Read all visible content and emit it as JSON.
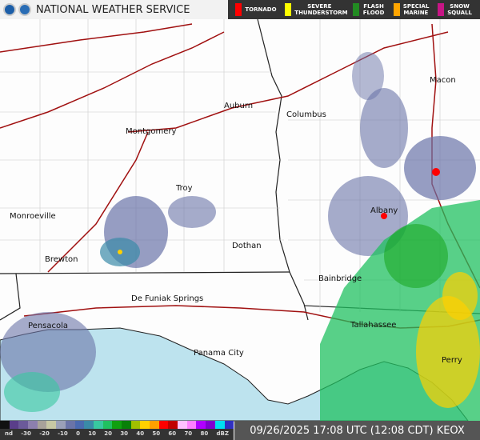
{
  "header": {
    "title": "NATIONAL WEATHER SERVICE"
  },
  "warnings": [
    {
      "label": "TORNADO",
      "color": "#ff0000"
    },
    {
      "label": "SEVERE THUNDERSTORM",
      "color": "#ffff00"
    },
    {
      "label": "FLASH FLOOD",
      "color": "#228b22"
    },
    {
      "label": "SPECIAL MARINE",
      "color": "#ffa500"
    },
    {
      "label": "SNOW SQUALL",
      "color": "#c71585"
    }
  ],
  "cities": [
    "Macon",
    "Auburn",
    "Columbus",
    "Montgomery",
    "Troy",
    "Albany",
    "Monroeville",
    "Dothan",
    "Brewton",
    "Bainbridge",
    "De Funiak Springs",
    "Pensacola",
    "Tallahassee",
    "Panama City",
    "Perry"
  ],
  "legend": {
    "ticks": [
      "nd",
      "-30",
      "-20",
      "-10",
      "0",
      "10",
      "20",
      "30",
      "40",
      "50",
      "60",
      "70",
      "80",
      "dBZ"
    ],
    "colors": [
      "#111",
      "#5a3e8a",
      "#6b5a9a",
      "#8c7fae",
      "#a8a29a",
      "#c7c8a4",
      "#9aa0b8",
      "#6a74a8",
      "#4a6ab0",
      "#3a8aa8",
      "#38c8a0",
      "#20c060",
      "#10a010",
      "#088008",
      "#a0c000",
      "#ffd000",
      "#ffa000",
      "#ff0000",
      "#c00000",
      "#ffc0ff",
      "#ff80ff",
      "#b000ff",
      "#8000d0",
      "#00e0f0",
      "#3030c0"
    ]
  },
  "timestamp": "09/26/2025 17:08 UTC (12:08 CDT) KEOX"
}
